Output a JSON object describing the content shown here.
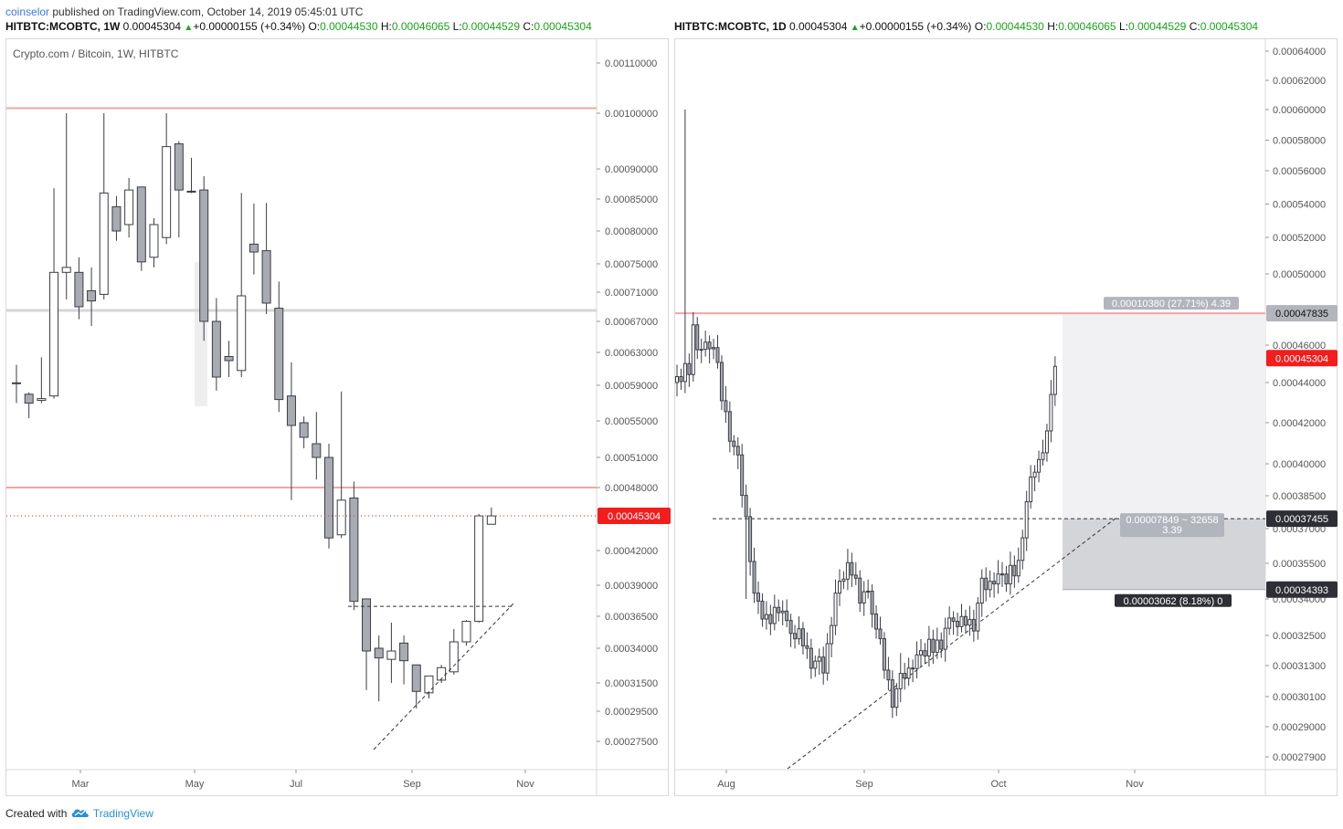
{
  "header": {
    "author": "coinselor",
    "published_text": "published on TradingView.com, October 14, 2019 05:45:01 UTC"
  },
  "footer": {
    "created_with": "Created with",
    "brand": "TradingView"
  },
  "colors": {
    "resistance": "#f4a4a4",
    "bull": "#ffffff",
    "bear": "#a9abb3",
    "candle_stroke": "#3b3d45",
    "up_green": "#19a519",
    "price_label": "#f21d1d"
  },
  "icons": {
    "change_arrow": "triangle-up-icon",
    "brand_logo": "tradingview-cloud-icon"
  },
  "left_header": {
    "symbol": "HITBTC:MCOBTC, 1W",
    "last": "0.00045304",
    "change": "+0.00000155 (+0.34%)",
    "o_label": "O:",
    "o": "0.00044530",
    "h_label": "H:",
    "h": "0.00046065",
    "l_label": "L:",
    "l": "0.00044529",
    "c_label": "C:",
    "c": "0.00045304"
  },
  "right_header": {
    "symbol": "HITBTC:MCOBTC, 1D",
    "last": "0.00045304",
    "change": "+0.00000155 (+0.34%)",
    "o_label": "O:",
    "o": "0.00044530",
    "h_label": "H:",
    "h": "0.00046065",
    "l_label": "L:",
    "l": "0.00044529",
    "c_label": "C:",
    "c": "0.00045304"
  },
  "chart_data": [
    {
      "type": "candlestick",
      "title": "Crypto.com / Bitcoin, 1W, HITBTC",
      "x_ticks": [
        "Mar",
        "May",
        "Jul",
        "Sep",
        "Nov"
      ],
      "y_ticks": [
        "0.00110000",
        "0.00100000",
        "0.00090000",
        "0.00085000",
        "0.00080000",
        "0.00075000",
        "0.00071000",
        "0.00067000",
        "0.00063000",
        "0.00059000",
        "0.00055000",
        "0.00051000",
        "0.00048000",
        "0.00042000",
        "0.00039000",
        "0.00036500",
        "0.00034000",
        "0.00031500",
        "0.00029500",
        "0.00027500"
      ],
      "last_price_label": "0.00045304",
      "last_price": 0.00045304,
      "resistance_levels": [
        0.00101,
        0.00048
      ],
      "gray_level": 0.000685,
      "breakout_level": 0.000373,
      "candles": [
        [
          0.000593,
          0.000593,
          0.000615,
          0.00057
        ],
        [
          0.00058,
          0.00057,
          0.000582,
          0.000553
        ],
        [
          0.000573,
          0.000575,
          0.000624,
          0.00057
        ],
        [
          0.000578,
          0.000738,
          0.000868,
          0.000575
        ],
        [
          0.000738,
          0.000745,
          0.001,
          0.0007
        ],
        [
          0.000738,
          0.00069,
          0.00076,
          0.000673
        ],
        [
          0.000712,
          0.000698,
          0.000745,
          0.000664
        ],
        [
          0.000707,
          0.00086,
          0.001,
          0.0007
        ],
        [
          0.000838,
          0.0008,
          0.000855,
          0.000785
        ],
        [
          0.00081,
          0.000865,
          0.000885,
          0.00079
        ],
        [
          0.00087,
          0.000753,
          0.00087,
          0.00074
        ],
        [
          0.00076,
          0.00081,
          0.00082,
          0.000745
        ],
        [
          0.00079,
          0.00094,
          0.001,
          0.00078
        ],
        [
          0.000945,
          0.000865,
          0.00095,
          0.00079
        ],
        [
          0.000863,
          0.000863,
          0.00092,
          0.00086
        ],
        [
          0.000865,
          0.00067,
          0.000888,
          0.000645
        ],
        [
          0.00067,
          0.0006,
          0.000702,
          0.000584
        ],
        [
          0.000625,
          0.00062,
          0.000645,
          0.0006
        ],
        [
          0.000608,
          0.000705,
          0.00086,
          0.0006
        ],
        [
          0.00078,
          0.000768,
          0.000843,
          0.000735
        ],
        [
          0.00077,
          0.000695,
          0.000844,
          0.00068
        ],
        [
          0.000688,
          0.000574,
          0.000725,
          0.00056
        ],
        [
          0.000578,
          0.000545,
          0.000618,
          0.000468
        ],
        [
          0.000548,
          0.000532,
          0.000555,
          0.00052
        ],
        [
          0.000525,
          0.00051,
          0.00056,
          0.000488
        ],
        [
          0.00051,
          0.000432,
          0.000525,
          0.000422
        ],
        [
          0.000435,
          0.000468,
          0.000583,
          0.000432
        ],
        [
          0.00047,
          0.000377,
          0.000486,
          0.00037
        ],
        [
          0.000379,
          0.000338,
          0.000379,
          0.00031
        ],
        [
          0.00034,
          0.000333,
          0.00035,
          0.000302
        ],
        [
          0.000332,
          0.000338,
          0.00036,
          0.000315
        ],
        [
          0.000344,
          0.000331,
          0.00035,
          0.000314
        ],
        [
          0.000328,
          0.000309,
          0.000328,
          0.000297
        ],
        [
          0.000308,
          0.00032,
          0.00032,
          0.000304
        ],
        [
          0.000317,
          0.000326,
          0.000328,
          0.000315
        ],
        [
          0.000323,
          0.000345,
          0.000355,
          0.000321
        ],
        [
          0.000345,
          0.000361,
          0.000362,
          0.000342
        ],
        [
          0.000361,
          0.000453,
          0.000455,
          0.00036
        ],
        [
          0.000445,
          0.000453,
          0.000461,
          0.000445
        ]
      ]
    },
    {
      "type": "candlestick",
      "title": "",
      "x_ticks": [
        "Aug",
        "Sep",
        "Oct",
        "Nov"
      ],
      "y_ticks": [
        "0.00064000",
        "0.00062000",
        "0.00060000",
        "0.00058000",
        "0.00056000",
        "0.00054000",
        "0.00052000",
        "0.00050000",
        "0.00046000",
        "0.00044000",
        "0.00042000",
        "0.00040000",
        "0.00038500",
        "0.00037000",
        "0.00035500",
        "0.00034000",
        "0.00032500",
        "0.00031300",
        "0.00030100",
        "0.00029000",
        "0.00027900"
      ],
      "last_price_label": "0.00045304",
      "last_price": 0.00045304,
      "resistance_level": 0.00047835,
      "resistance_label": "0.00047835",
      "entry_level": 0.00037455,
      "entry_label": "0.00037455",
      "stop_level": 0.00034393,
      "stop_label": "0.00034393",
      "target_note": "0.00010380 (27.71%) 4.39",
      "entry_note_1": "0.00007849 ~ 32658",
      "entry_note_2": "3.39",
      "stop_note": "0.00003062 (8.18%) 0"
    }
  ]
}
